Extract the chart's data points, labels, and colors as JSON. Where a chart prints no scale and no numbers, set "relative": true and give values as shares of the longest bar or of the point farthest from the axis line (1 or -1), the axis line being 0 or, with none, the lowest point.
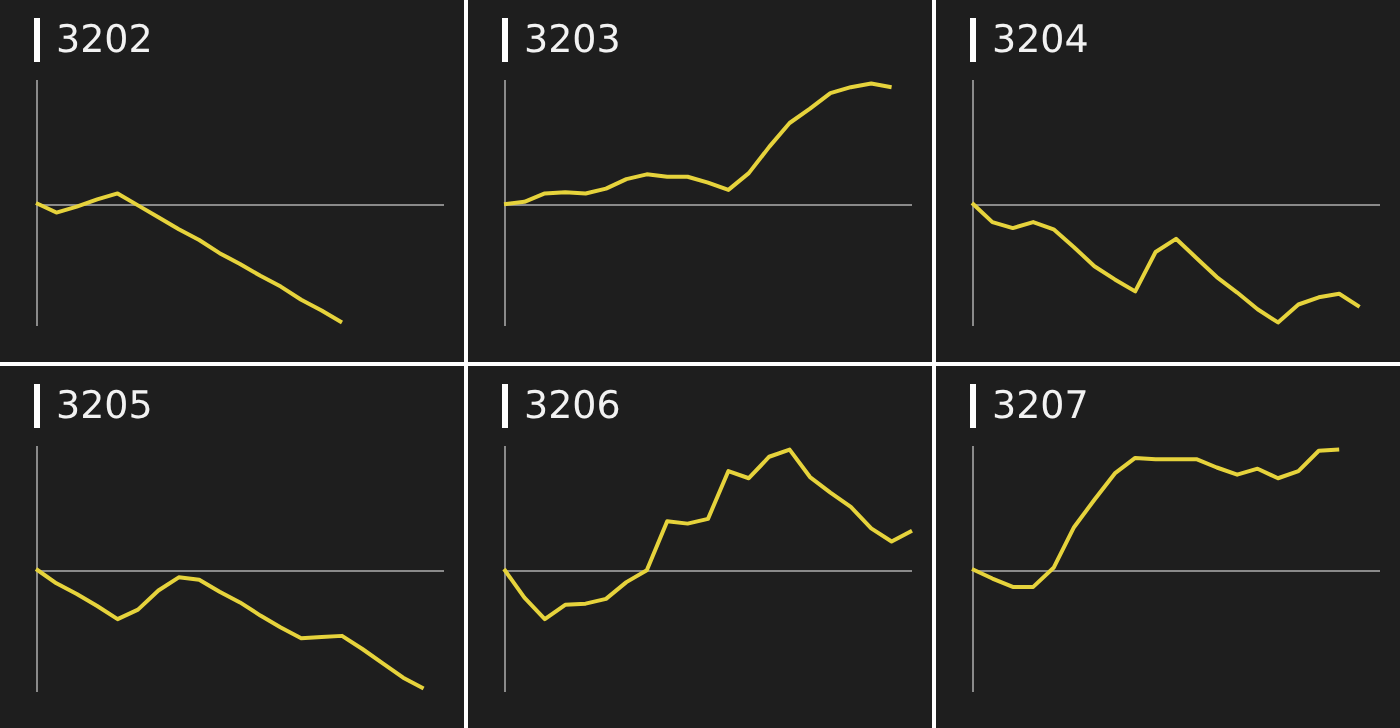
{
  "chart_data": [
    {
      "type": "line",
      "title": "3202",
      "relative": true,
      "color": "#e6d33c",
      "categories": [
        null,
        null,
        null,
        null,
        null,
        null,
        null,
        null,
        null,
        null,
        null,
        null,
        null,
        null,
        null,
        null,
        null,
        null,
        null,
        null,
        null
      ],
      "values": [
        0,
        -0.08,
        -0.03,
        0.03,
        0.08,
        -0.02,
        -0.12,
        -0.22,
        -0.31,
        -0.42,
        -0.51,
        -0.61,
        -0.7,
        -0.81,
        -0.9,
        -1,
        null,
        null,
        null,
        null,
        null
      ]
    },
    {
      "type": "line",
      "title": "3203",
      "relative": true,
      "color": "#e6d33c",
      "categories": [
        null,
        null,
        null,
        null,
        null,
        null,
        null,
        null,
        null,
        null,
        null,
        null,
        null,
        null,
        null,
        null,
        null,
        null,
        null,
        null,
        null
      ],
      "values": [
        -0.01,
        0.01,
        0.08,
        0.09,
        0.08,
        0.12,
        0.2,
        0.24,
        0.22,
        0.22,
        0.17,
        0.11,
        0.25,
        0.47,
        0.67,
        0.79,
        0.92,
        0.97,
        1,
        0.97,
        null
      ]
    },
    {
      "type": "line",
      "title": "3204",
      "relative": true,
      "color": "#e6d33c",
      "categories": [
        null,
        null,
        null,
        null,
        null,
        null,
        null,
        null,
        null,
        null,
        null,
        null,
        null,
        null,
        null,
        null,
        null,
        null,
        null,
        null,
        null
      ],
      "values": [
        0,
        -0.16,
        -0.21,
        -0.16,
        -0.22,
        -0.37,
        -0.53,
        -0.64,
        -0.74,
        -0.41,
        -0.3,
        -0.46,
        -0.62,
        -0.75,
        -0.89,
        -1,
        -0.85,
        -0.79,
        -0.76,
        -0.87,
        null
      ]
    },
    {
      "type": "line",
      "title": "3205",
      "relative": true,
      "color": "#e6d33c",
      "categories": [
        null,
        null,
        null,
        null,
        null,
        null,
        null,
        null,
        null,
        null,
        null,
        null,
        null,
        null,
        null,
        null,
        null,
        null,
        null,
        null,
        null
      ],
      "values": [
        0,
        -0.12,
        -0.21,
        -0.31,
        -0.42,
        -0.34,
        -0.18,
        -0.07,
        -0.09,
        -0.19,
        -0.28,
        -0.39,
        -0.49,
        -0.58,
        -0.57,
        -0.56,
        -0.67,
        -0.79,
        -0.91,
        -1,
        null
      ]
    },
    {
      "type": "line",
      "title": "3206",
      "relative": true,
      "color": "#e6d33c",
      "categories": [
        null,
        null,
        null,
        null,
        null,
        null,
        null,
        null,
        null,
        null,
        null,
        null,
        null,
        null,
        null,
        null,
        null,
        null,
        null,
        null,
        null
      ],
      "values": [
        0,
        -0.24,
        -0.42,
        -0.3,
        -0.29,
        -0.25,
        -0.11,
        -0.01,
        0.4,
        0.38,
        0.42,
        0.82,
        0.76,
        0.94,
        1,
        0.77,
        0.64,
        0.52,
        0.34,
        0.23,
        0.32
      ]
    },
    {
      "type": "line",
      "title": "3207",
      "relative": true,
      "color": "#e6d33c",
      "categories": [
        null,
        null,
        null,
        null,
        null,
        null,
        null,
        null,
        null,
        null,
        null,
        null,
        null,
        null,
        null,
        null,
        null,
        null,
        null,
        null,
        null
      ],
      "values": [
        0,
        -0.08,
        -0.15,
        -0.15,
        0.01,
        0.35,
        0.58,
        0.8,
        0.93,
        0.92,
        0.92,
        0.92,
        0.85,
        0.79,
        0.84,
        0.76,
        0.82,
        0.99,
        1,
        null,
        null
      ]
    }
  ]
}
